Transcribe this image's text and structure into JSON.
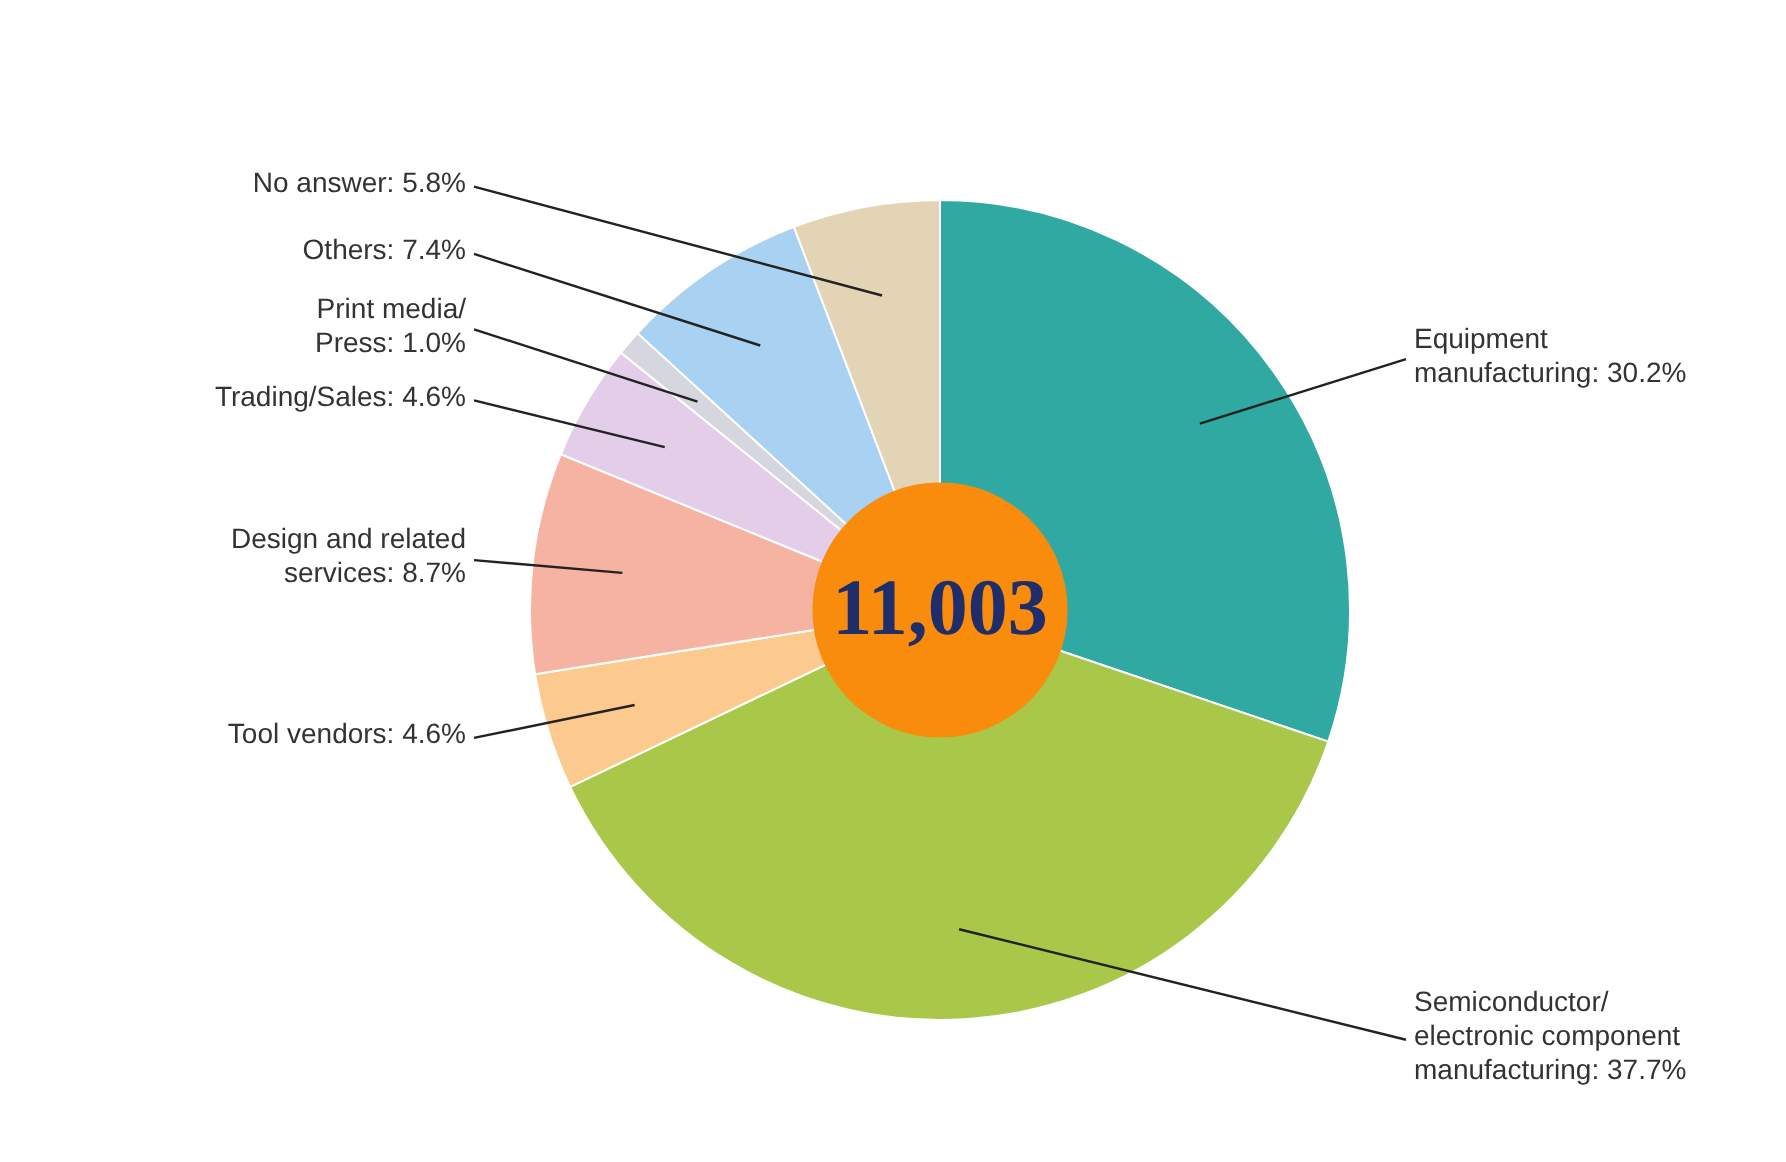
{
  "chart_data": {
    "type": "donut",
    "categories": [
      "Equipment manufacturing",
      "Semiconductor/ electronic component manufacturing",
      "Tool vendors",
      "Design and related services",
      "Trading/Sales",
      "Print media/ Press",
      "Others",
      "No answer"
    ],
    "values": [
      30.2,
      37.7,
      4.6,
      8.7,
      4.6,
      1.0,
      7.4,
      5.8
    ],
    "value_labels": [
      "30.2%",
      "37.7%",
      "4.6%",
      "8.7%",
      "4.6%",
      "1.0%",
      "7.4%",
      "5.8%"
    ],
    "colors": [
      "#2fa9a2",
      "#a9c84a",
      "#fcc98e",
      "#f7b3a2",
      "#e3cde8",
      "#d6d6de",
      "#a9d1f2",
      "#e3d4b6"
    ],
    "annotations": [
      "11,003"
    ]
  }
}
